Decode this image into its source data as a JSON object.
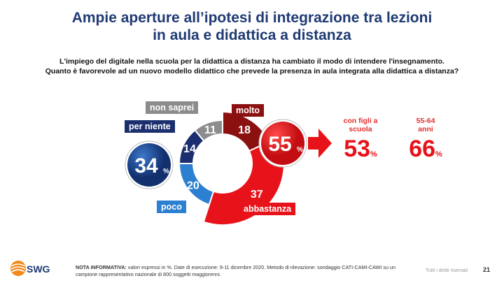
{
  "header": {
    "title_line1": "Ampie aperture all’ipotesi di integrazione tra lezioni",
    "title_line2": "in aula e didattica a distanza"
  },
  "question": {
    "line1": "L'impiego del digitale nella scuola per la didattica a distanza ha cambiato il modo di intendere l'insegnamento.",
    "line2": "Quanto è favorevole ad un nuovo modello didattico che prevede la presenza in aula integrata alla didattica a distanza?"
  },
  "chart_data": {
    "type": "pie",
    "style": "donut",
    "unit": "%",
    "slices": [
      {
        "label": "molto",
        "value": 18,
        "color": "#8b1010"
      },
      {
        "label": "abbastanza",
        "value": 37,
        "color": "#e8131a"
      },
      {
        "label": "poco",
        "value": 20,
        "color": "#2c7fd1"
      },
      {
        "label": "per niente",
        "value": 14,
        "color": "#1b2f6e"
      },
      {
        "label": "non saprei",
        "value": 11,
        "color": "#8c8c8c"
      }
    ],
    "groups": [
      {
        "value": "55",
        "unit": "%",
        "color": "#e8131a"
      },
      {
        "value": "34",
        "unit": "%",
        "color": "#1f4fa0"
      }
    ]
  },
  "stats": [
    {
      "label_line1": "con figli a",
      "label_line2": "scuola",
      "value": "53",
      "unit": "%"
    },
    {
      "label_line1": "55-64",
      "label_line2": "anni",
      "value": "66",
      "unit": "%"
    }
  ],
  "footer": {
    "note_label": "NOTA INFORMATIVA:",
    "note_text": "valori espressi in %. Date di esecuzione: 9-11 dicembre 2020. Metodo di rilevazione: sondaggio CATI-CAMI-CAWI su un campione rappresentativo nazionale di 800 soggetti maggiorenni.",
    "rights": "Tutti i diritti riservati",
    "page": "21",
    "logo": "SWG"
  }
}
